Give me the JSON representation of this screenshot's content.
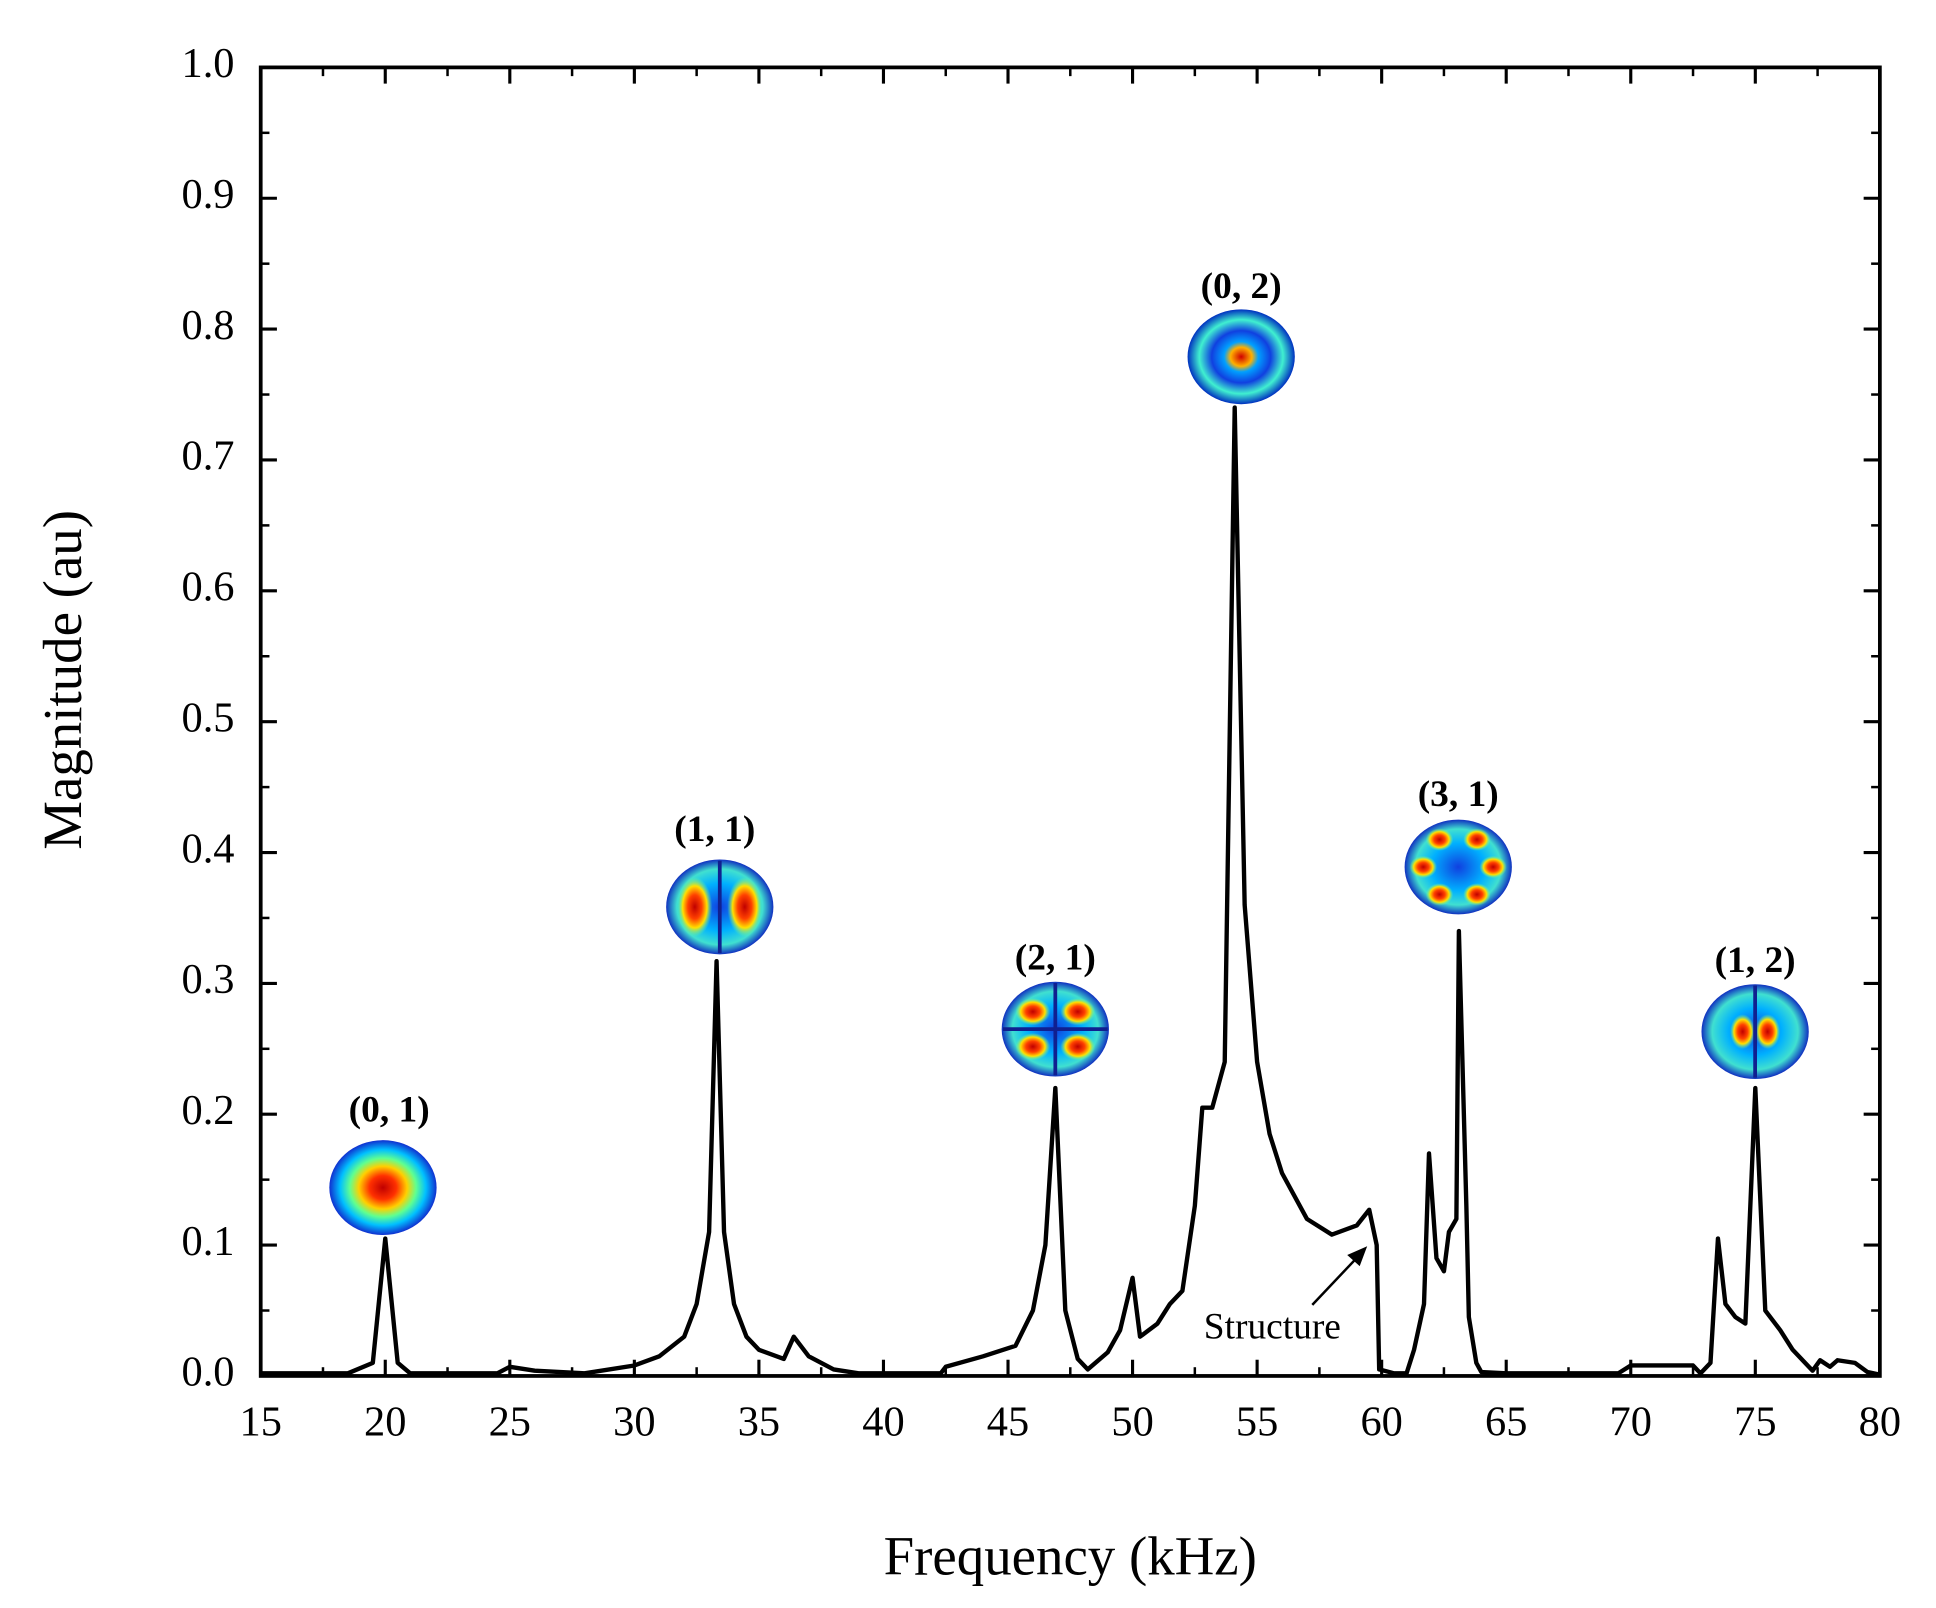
{
  "chart_data": {
    "type": "line",
    "xlabel": "Frequency (kHz)",
    "ylabel": "Magnitude (au)",
    "xlim": [
      15,
      80
    ],
    "ylim": [
      0,
      1
    ],
    "xticks": [
      15,
      20,
      25,
      30,
      35,
      40,
      45,
      50,
      55,
      60,
      65,
      70,
      75,
      80
    ],
    "yticks": [
      {
        "value": 0,
        "label": "0.0"
      },
      0.1,
      0.2,
      0.3,
      0.4,
      0.5,
      0.6,
      0.7,
      0.8,
      0.9,
      {
        "value": 1,
        "label": "1.0"
      }
    ],
    "series": [
      {
        "color": "#000000",
        "x": [
          15,
          18.5,
          19.5,
          20,
          20.5,
          21,
          24.5,
          25,
          26,
          28,
          30,
          31,
          32,
          32.5,
          33,
          33.3,
          33.6,
          34,
          34.5,
          35,
          36,
          36.4,
          37,
          38,
          39,
          42.3,
          42.5,
          44,
          45.3,
          46,
          46.5,
          46.9,
          47.3,
          47.8,
          48.2,
          49,
          49.5,
          50,
          50.3,
          51,
          51.5,
          52,
          52.5,
          52.8,
          53.2,
          53.7,
          54.1,
          54.5,
          55,
          55.5,
          56,
          57,
          58,
          59,
          59.5,
          59.8,
          59.9,
          60.5,
          61,
          61.3,
          61.7,
          61.9,
          62.2,
          62.5,
          62.7,
          63,
          63.1,
          63.4,
          63.5,
          63.8,
          64,
          65,
          69.5,
          70,
          72.5,
          72.8,
          73.2,
          73.5,
          73.8,
          74.2,
          74.6,
          75,
          75.4,
          76,
          76.5,
          77,
          77.3,
          77.6,
          78,
          78.3,
          79,
          79.5,
          80
        ],
        "values": [
          0.002,
          0.002,
          0.01,
          0.105,
          0.01,
          0.002,
          0.002,
          0.007,
          0.004,
          0.002,
          0.008,
          0.015,
          0.03,
          0.055,
          0.11,
          0.317,
          0.11,
          0.055,
          0.03,
          0.02,
          0.013,
          0.03,
          0.015,
          0.005,
          0.002,
          0.002,
          0.007,
          0.015,
          0.023,
          0.05,
          0.1,
          0.22,
          0.05,
          0.013,
          0.005,
          0.018,
          0.035,
          0.075,
          0.03,
          0.04,
          0.055,
          0.065,
          0.13,
          0.205,
          0.205,
          0.24,
          0.74,
          0.36,
          0.24,
          0.185,
          0.155,
          0.12,
          0.108,
          0.115,
          0.127,
          0.1,
          0.005,
          0.002,
          0.002,
          0.02,
          0.055,
          0.17,
          0.09,
          0.08,
          0.11,
          0.12,
          0.34,
          0.13,
          0.045,
          0.01,
          0.003,
          0.002,
          0.002,
          0.008,
          0.008,
          0.002,
          0.01,
          0.105,
          0.055,
          0.045,
          0.04,
          0.22,
          0.05,
          0.035,
          0.02,
          0.01,
          0.004,
          0.012,
          0.007,
          0.012,
          0.01,
          0.003,
          0.001
        ]
      }
    ],
    "annotations": [
      "(0, 1)",
      "(1, 1)",
      "(2, 1)",
      "(0, 2)",
      "(3, 1)",
      "(1, 2)",
      "Structure"
    ]
  }
}
